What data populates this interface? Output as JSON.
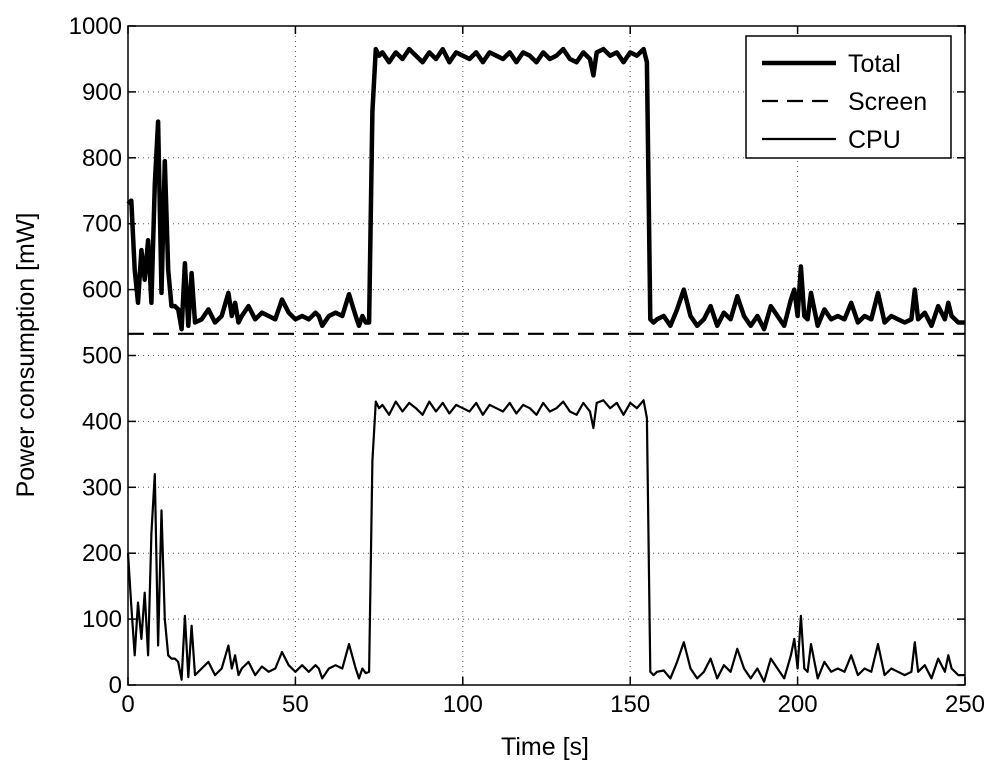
{
  "chart_data": {
    "type": "line",
    "xlabel": "Time [s]",
    "ylabel": "Power consumption [mW]",
    "xlim": [
      0,
      250
    ],
    "ylim": [
      0,
      1000
    ],
    "xticks": [
      0,
      50,
      100,
      150,
      200,
      250
    ],
    "yticks": [
      0,
      100,
      200,
      300,
      400,
      500,
      600,
      700,
      800,
      900,
      1000
    ],
    "grid": true,
    "legend_position": "top-right",
    "series": [
      {
        "name": "Total",
        "style": "solid-thick",
        "x": [
          0,
          1,
          2,
          3,
          4,
          5,
          6,
          7,
          8,
          9,
          10,
          11,
          12,
          13,
          14,
          15,
          16,
          17,
          18,
          19,
          20,
          22,
          24,
          26,
          28,
          30,
          31,
          32,
          33,
          34,
          36,
          38,
          40,
          42,
          44,
          46,
          48,
          50,
          52,
          54,
          56,
          57,
          58,
          60,
          62,
          64,
          66,
          68,
          69,
          70,
          71,
          72,
          73,
          74,
          75,
          76,
          78,
          80,
          82,
          84,
          86,
          88,
          90,
          92,
          94,
          96,
          98,
          100,
          102,
          104,
          106,
          108,
          110,
          112,
          114,
          116,
          118,
          120,
          122,
          124,
          126,
          128,
          130,
          132,
          134,
          136,
          138,
          139,
          140,
          142,
          144,
          146,
          148,
          150,
          152,
          154,
          155,
          156,
          157,
          158,
          160,
          162,
          164,
          166,
          168,
          170,
          172,
          174,
          176,
          178,
          180,
          182,
          184,
          186,
          188,
          190,
          192,
          194,
          196,
          198,
          199,
          200,
          201,
          202,
          203,
          204,
          206,
          208,
          210,
          212,
          214,
          216,
          218,
          220,
          222,
          224,
          226,
          228,
          230,
          232,
          234,
          235,
          236,
          238,
          240,
          242,
          244,
          245,
          246,
          248,
          250
        ],
        "values": [
          730,
          735,
          630,
          580,
          660,
          615,
          675,
          580,
          760,
          855,
          595,
          795,
          630,
          575,
          575,
          570,
          540,
          640,
          545,
          625,
          550,
          555,
          570,
          550,
          560,
          595,
          560,
          580,
          550,
          560,
          575,
          555,
          565,
          560,
          555,
          585,
          565,
          555,
          560,
          555,
          565,
          560,
          545,
          560,
          565,
          560,
          593,
          560,
          545,
          560,
          550,
          550,
          870,
          965,
          955,
          960,
          945,
          960,
          950,
          965,
          955,
          945,
          960,
          950,
          965,
          945,
          960,
          955,
          950,
          960,
          945,
          960,
          955,
          950,
          960,
          945,
          960,
          955,
          945,
          960,
          950,
          955,
          965,
          950,
          945,
          960,
          950,
          925,
          960,
          965,
          955,
          960,
          945,
          960,
          955,
          965,
          945,
          555,
          550,
          555,
          560,
          545,
          570,
          600,
          560,
          545,
          555,
          575,
          545,
          565,
          555,
          590,
          560,
          545,
          560,
          540,
          575,
          560,
          545,
          585,
          600,
          560,
          635,
          560,
          555,
          595,
          545,
          570,
          555,
          560,
          555,
          580,
          550,
          560,
          555,
          595,
          550,
          560,
          555,
          550,
          555,
          600,
          555,
          565,
          545,
          575,
          555,
          580,
          560,
          550,
          550
        ]
      },
      {
        "name": "Screen",
        "style": "dashed",
        "x": [
          0,
          250
        ],
        "values": [
          533,
          533
        ]
      },
      {
        "name": "CPU",
        "style": "solid-thin",
        "x": [
          0,
          1,
          2,
          3,
          4,
          5,
          6,
          7,
          8,
          9,
          10,
          11,
          12,
          13,
          14,
          15,
          16,
          17,
          18,
          19,
          20,
          22,
          24,
          26,
          28,
          30,
          31,
          32,
          33,
          34,
          36,
          38,
          40,
          42,
          44,
          46,
          48,
          50,
          52,
          54,
          56,
          57,
          58,
          60,
          62,
          64,
          66,
          68,
          69,
          70,
          71,
          72,
          73,
          74,
          75,
          76,
          78,
          80,
          82,
          84,
          86,
          88,
          90,
          92,
          94,
          96,
          98,
          100,
          102,
          104,
          106,
          108,
          110,
          112,
          114,
          116,
          118,
          120,
          122,
          124,
          126,
          128,
          130,
          132,
          134,
          136,
          138,
          139,
          140,
          142,
          144,
          146,
          148,
          150,
          152,
          154,
          155,
          156,
          157,
          158,
          160,
          162,
          164,
          166,
          168,
          170,
          172,
          174,
          176,
          178,
          180,
          182,
          184,
          186,
          188,
          190,
          192,
          194,
          196,
          198,
          199,
          200,
          201,
          202,
          203,
          204,
          206,
          208,
          210,
          212,
          214,
          216,
          218,
          220,
          222,
          224,
          226,
          228,
          230,
          232,
          234,
          235,
          236,
          238,
          240,
          242,
          244,
          245,
          246,
          248,
          250
        ],
        "values": [
          200,
          120,
          45,
          125,
          70,
          140,
          45,
          230,
          320,
          60,
          265,
          100,
          45,
          40,
          40,
          35,
          8,
          105,
          12,
          90,
          15,
          25,
          35,
          15,
          25,
          60,
          25,
          45,
          15,
          25,
          35,
          15,
          28,
          20,
          25,
          50,
          30,
          20,
          30,
          20,
          30,
          25,
          10,
          25,
          30,
          25,
          62,
          25,
          10,
          25,
          18,
          20,
          340,
          430,
          420,
          425,
          410,
          430,
          415,
          428,
          420,
          410,
          430,
          415,
          428,
          412,
          425,
          420,
          415,
          428,
          410,
          425,
          420,
          415,
          428,
          412,
          425,
          420,
          410,
          428,
          415,
          420,
          430,
          415,
          410,
          428,
          415,
          390,
          428,
          432,
          420,
          428,
          410,
          428,
          420,
          432,
          405,
          20,
          15,
          20,
          22,
          10,
          35,
          65,
          25,
          10,
          20,
          40,
          10,
          30,
          20,
          55,
          25,
          10,
          25,
          5,
          40,
          25,
          10,
          45,
          70,
          25,
          105,
          25,
          20,
          62,
          10,
          35,
          20,
          25,
          20,
          45,
          15,
          25,
          20,
          62,
          15,
          25,
          20,
          15,
          20,
          65,
          20,
          30,
          10,
          40,
          20,
          45,
          25,
          15,
          15
        ]
      }
    ]
  }
}
